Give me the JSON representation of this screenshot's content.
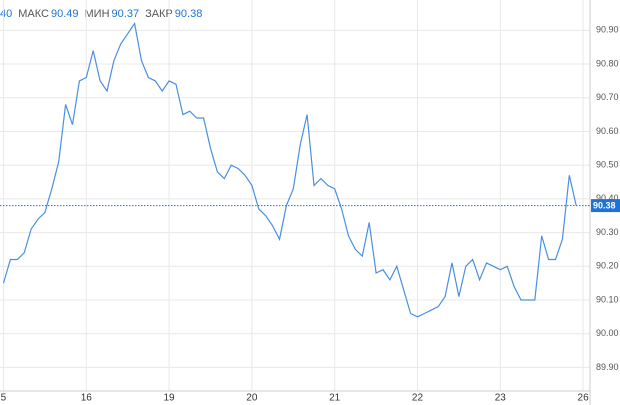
{
  "chart_data": {
    "type": "line",
    "stats": [
      {
        "value": 40
      },
      {
        "label": "МАКС",
        "value": 90.49
      },
      {
        "label": "МИН",
        "value": 90.37
      },
      {
        "label": "ЗАКР",
        "value": 90.38
      }
    ],
    "x": [
      0,
      2,
      4,
      6,
      8,
      10,
      12,
      14,
      16,
      18,
      20,
      22,
      24,
      26,
      28,
      30,
      32,
      34,
      36,
      38,
      40,
      42,
      44,
      46,
      48,
      50,
      52,
      54,
      56,
      58,
      60,
      62,
      64,
      66,
      68,
      70,
      72,
      74,
      76,
      78,
      80,
      82,
      84,
      86,
      88,
      90,
      92,
      94,
      96,
      98,
      100,
      102,
      104,
      106,
      108,
      110,
      112,
      114,
      116,
      118,
      120,
      122,
      124,
      126,
      128,
      130,
      132,
      134,
      136,
      138,
      140,
      142,
      144,
      146,
      148,
      150,
      152,
      154,
      156,
      158,
      160,
      162,
      164,
      166
    ],
    "series": [
      {
        "color": "#4a90e2",
        "values": [
          90.15,
          90.22,
          90.22,
          90.24,
          90.31,
          90.34,
          90.36,
          90.43,
          90.51,
          90.68,
          90.62,
          90.75,
          90.76,
          90.84,
          90.75,
          90.72,
          90.81,
          90.86,
          90.89,
          90.92,
          90.81,
          90.76,
          90.75,
          90.72,
          90.75,
          90.74,
          90.65,
          90.66,
          90.64,
          90.64,
          90.55,
          90.48,
          90.46,
          90.5,
          90.49,
          90.47,
          90.44,
          90.37,
          90.35,
          90.32,
          90.28,
          90.38,
          90.43,
          90.56,
          90.65,
          90.44,
          90.46,
          90.44,
          90.43,
          90.37,
          90.29,
          90.25,
          90.23,
          90.33,
          90.18,
          90.19,
          90.16,
          90.2,
          90.13,
          90.06,
          90.05,
          90.06,
          90.07,
          90.08,
          90.11,
          90.21,
          90.11,
          90.2,
          90.22,
          90.16,
          90.21,
          90.2,
          90.19,
          90.2,
          90.14,
          90.1,
          90.1,
          90.1,
          90.29,
          90.22,
          90.22,
          90.28,
          90.47,
          90.38
        ]
      }
    ],
    "xlim": [
      -1,
      170
    ],
    "xticks": [
      {
        "value": 0,
        "label": "5"
      },
      {
        "value": 24,
        "label": "16"
      },
      {
        "value": 48,
        "label": "19"
      },
      {
        "value": 72,
        "label": "20"
      },
      {
        "value": 96,
        "label": "21"
      },
      {
        "value": 120,
        "label": "22"
      },
      {
        "value": 144,
        "label": "23"
      },
      {
        "value": 168,
        "label": "26"
      }
    ],
    "ylim": [
      89.83,
      90.99
    ],
    "yticks": [
      {
        "value": 89.9,
        "label": "89.90"
      },
      {
        "value": 90.0,
        "label": "90.00"
      },
      {
        "value": 90.1,
        "label": "90.10"
      },
      {
        "value": 90.2,
        "label": "90.20"
      },
      {
        "value": 90.3,
        "label": "90.30"
      },
      {
        "value": 90.4,
        "label": "90.40"
      },
      {
        "value": 90.5,
        "label": "90.50"
      },
      {
        "value": 90.6,
        "label": "90.60"
      },
      {
        "value": 90.7,
        "label": "90.70"
      },
      {
        "value": 90.8,
        "label": "90.80"
      },
      {
        "value": 90.9,
        "label": "90.90"
      }
    ],
    "grid": true,
    "last_price": 90.38,
    "last_price_color": "#1e73d2"
  }
}
